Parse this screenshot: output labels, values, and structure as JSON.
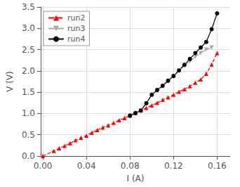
{
  "chart_data": {
    "type": "line",
    "xlabel": "I (A)",
    "ylabel": "V (V)",
    "xlim": [
      -0.002,
      0.172
    ],
    "ylim": [
      0.0,
      3.5
    ],
    "xticks": [
      {
        "value": 0.0,
        "label": "0.00"
      },
      {
        "value": 0.04,
        "label": "0.04"
      },
      {
        "value": 0.08,
        "label": "0.08"
      },
      {
        "value": 0.12,
        "label": "0.12"
      },
      {
        "value": 0.16,
        "label": "0.16"
      }
    ],
    "yticks": [
      {
        "value": 0.0,
        "label": "0.0"
      },
      0.5,
      {
        "value": 1.0,
        "label": "1.0"
      },
      1.5,
      {
        "value": 2.0,
        "label": "2.0"
      },
      2.5,
      {
        "value": 3.0,
        "label": "3.0"
      },
      3.5
    ],
    "grid": true,
    "legend": "upper left",
    "series": [
      {
        "name": "run2",
        "color": "#FF0000",
        "line_style": "dashed",
        "marker": "triangle",
        "x": [
          0.0,
          0.01,
          0.015,
          0.02,
          0.025,
          0.03,
          0.035,
          0.04,
          0.045,
          0.05,
          0.055,
          0.06,
          0.065,
          0.07,
          0.075,
          0.08,
          0.085,
          0.09,
          0.095,
          0.1,
          0.105,
          0.11,
          0.115,
          0.12,
          0.125,
          0.13,
          0.135,
          0.14,
          0.145,
          0.15,
          0.155,
          0.16
        ],
        "values": [
          0.0,
          0.12,
          0.18,
          0.24,
          0.3,
          0.37,
          0.43,
          0.48,
          0.55,
          0.61,
          0.67,
          0.72,
          0.78,
          0.84,
          0.89,
          0.95,
          1.01,
          1.07,
          1.13,
          1.19,
          1.25,
          1.32,
          1.38,
          1.44,
          1.51,
          1.57,
          1.64,
          1.72,
          1.8,
          1.93,
          2.15,
          2.42
        ]
      },
      {
        "name": "run3",
        "color": "#aaaaaa",
        "line_style": "solid",
        "marker": "triangle_down",
        "x": [
          0.08,
          0.085,
          0.09,
          0.095,
          0.1,
          0.105,
          0.11,
          0.115,
          0.12,
          0.125,
          0.13,
          0.135,
          0.14,
          0.145,
          0.15,
          0.155
        ],
        "values": [
          0.95,
          1.01,
          1.07,
          1.24,
          1.44,
          1.55,
          1.65,
          1.77,
          1.88,
          2.01,
          2.14,
          2.22,
          2.33,
          2.42,
          2.5,
          2.55
        ]
      },
      {
        "name": "run4",
        "color": "#000000",
        "line_style": "solid",
        "marker": "circle",
        "x": [
          0.08,
          0.085,
          0.09,
          0.095,
          0.1,
          0.105,
          0.11,
          0.115,
          0.12,
          0.125,
          0.13,
          0.135,
          0.14,
          0.145,
          0.15,
          0.155,
          0.16
        ],
        "values": [
          0.95,
          1.01,
          1.07,
          1.24,
          1.44,
          1.55,
          1.65,
          1.77,
          1.88,
          2.01,
          2.14,
          2.28,
          2.42,
          2.55,
          2.68,
          2.98,
          3.35
        ]
      }
    ]
  }
}
